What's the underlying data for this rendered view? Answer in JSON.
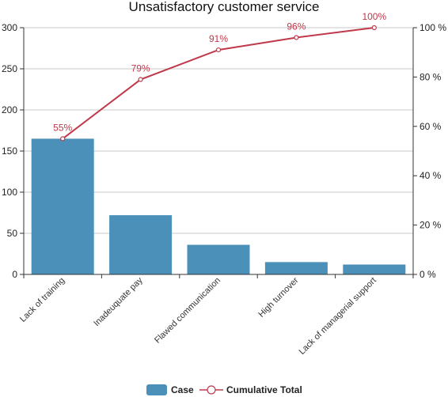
{
  "chart_data": {
    "type": "bar",
    "title": "Unsatisfactory customer service",
    "categories": [
      "Lack of training",
      "Inadeuquate pay",
      "Flawed communication",
      "High turnover",
      "Lack of managerial support"
    ],
    "series": [
      {
        "name": "Case",
        "type": "bar",
        "axis": "left",
        "values": [
          165,
          72,
          36,
          15,
          12
        ]
      },
      {
        "name": "Cumulative Total",
        "type": "line",
        "axis": "right",
        "values": [
          55,
          79,
          91,
          96,
          100
        ],
        "labels": [
          "55%",
          "79%",
          "91%",
          "96%",
          "100%"
        ]
      }
    ],
    "y_left": {
      "min": 0,
      "max": 300,
      "ticks": [
        0,
        50,
        100,
        150,
        200,
        250,
        300
      ],
      "tick_labels": [
        "0",
        "50",
        "100",
        "150",
        "200",
        "250",
        "300"
      ]
    },
    "y_right": {
      "min": 0,
      "max": 100,
      "ticks": [
        0,
        20,
        40,
        60,
        80,
        100
      ],
      "tick_labels": [
        "0 %",
        "20 %",
        "40 %",
        "60 %",
        "80 %",
        "100 %"
      ]
    },
    "grid": true,
    "legend_position": "bottom",
    "colors": {
      "bar": "#4a90b8",
      "line": "#c0394b"
    }
  }
}
